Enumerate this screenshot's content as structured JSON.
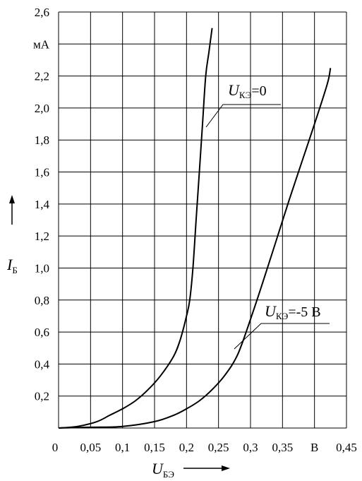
{
  "chart_data": {
    "type": "line",
    "y_unit": "мА",
    "y_label": {
      "main": "I",
      "sub": "Б"
    },
    "x_label": {
      "main": "U",
      "sub": "БЭ"
    },
    "x_unit": "В",
    "x_ticks": [
      "0",
      "0,05",
      "0,1",
      "0,15",
      "0,2",
      "0,25",
      "0,3",
      "0,35",
      "В",
      "0,45"
    ],
    "y_ticks": [
      "0,2",
      "0,4",
      "0,6",
      "0,8",
      "1,0",
      "1,2",
      "1,4",
      "1,6",
      "1,8",
      "2,0",
      "2,2",
      "мА",
      "2,6"
    ],
    "xlim": [
      0,
      0.45
    ],
    "ylim": [
      0,
      2.6
    ],
    "grid": true,
    "series": [
      {
        "label_main": "U",
        "label_sub": "КЭ",
        "label_rest": "=0",
        "points": [
          [
            0,
            0
          ],
          [
            0.03,
            0.01
          ],
          [
            0.06,
            0.04
          ],
          [
            0.08,
            0.08
          ],
          [
            0.1,
            0.12
          ],
          [
            0.12,
            0.17
          ],
          [
            0.14,
            0.24
          ],
          [
            0.16,
            0.33
          ],
          [
            0.18,
            0.45
          ],
          [
            0.19,
            0.55
          ],
          [
            0.2,
            0.7
          ],
          [
            0.205,
            0.8
          ],
          [
            0.21,
            1.0
          ],
          [
            0.215,
            1.3
          ],
          [
            0.22,
            1.6
          ],
          [
            0.225,
            1.9
          ],
          [
            0.23,
            2.2
          ],
          [
            0.235,
            2.35
          ],
          [
            0.24,
            2.5
          ]
        ]
      },
      {
        "label_main": "U",
        "label_sub": "КЭ",
        "label_rest": "=-5 В",
        "points": [
          [
            0,
            0
          ],
          [
            0.05,
            0.005
          ],
          [
            0.1,
            0.01
          ],
          [
            0.15,
            0.04
          ],
          [
            0.18,
            0.08
          ],
          [
            0.2,
            0.12
          ],
          [
            0.22,
            0.17
          ],
          [
            0.24,
            0.24
          ],
          [
            0.26,
            0.33
          ],
          [
            0.28,
            0.46
          ],
          [
            0.3,
            0.68
          ],
          [
            0.32,
            0.92
          ],
          [
            0.34,
            1.17
          ],
          [
            0.36,
            1.42
          ],
          [
            0.38,
            1.66
          ],
          [
            0.4,
            1.9
          ],
          [
            0.42,
            2.15
          ],
          [
            0.425,
            2.25
          ]
        ]
      }
    ]
  }
}
